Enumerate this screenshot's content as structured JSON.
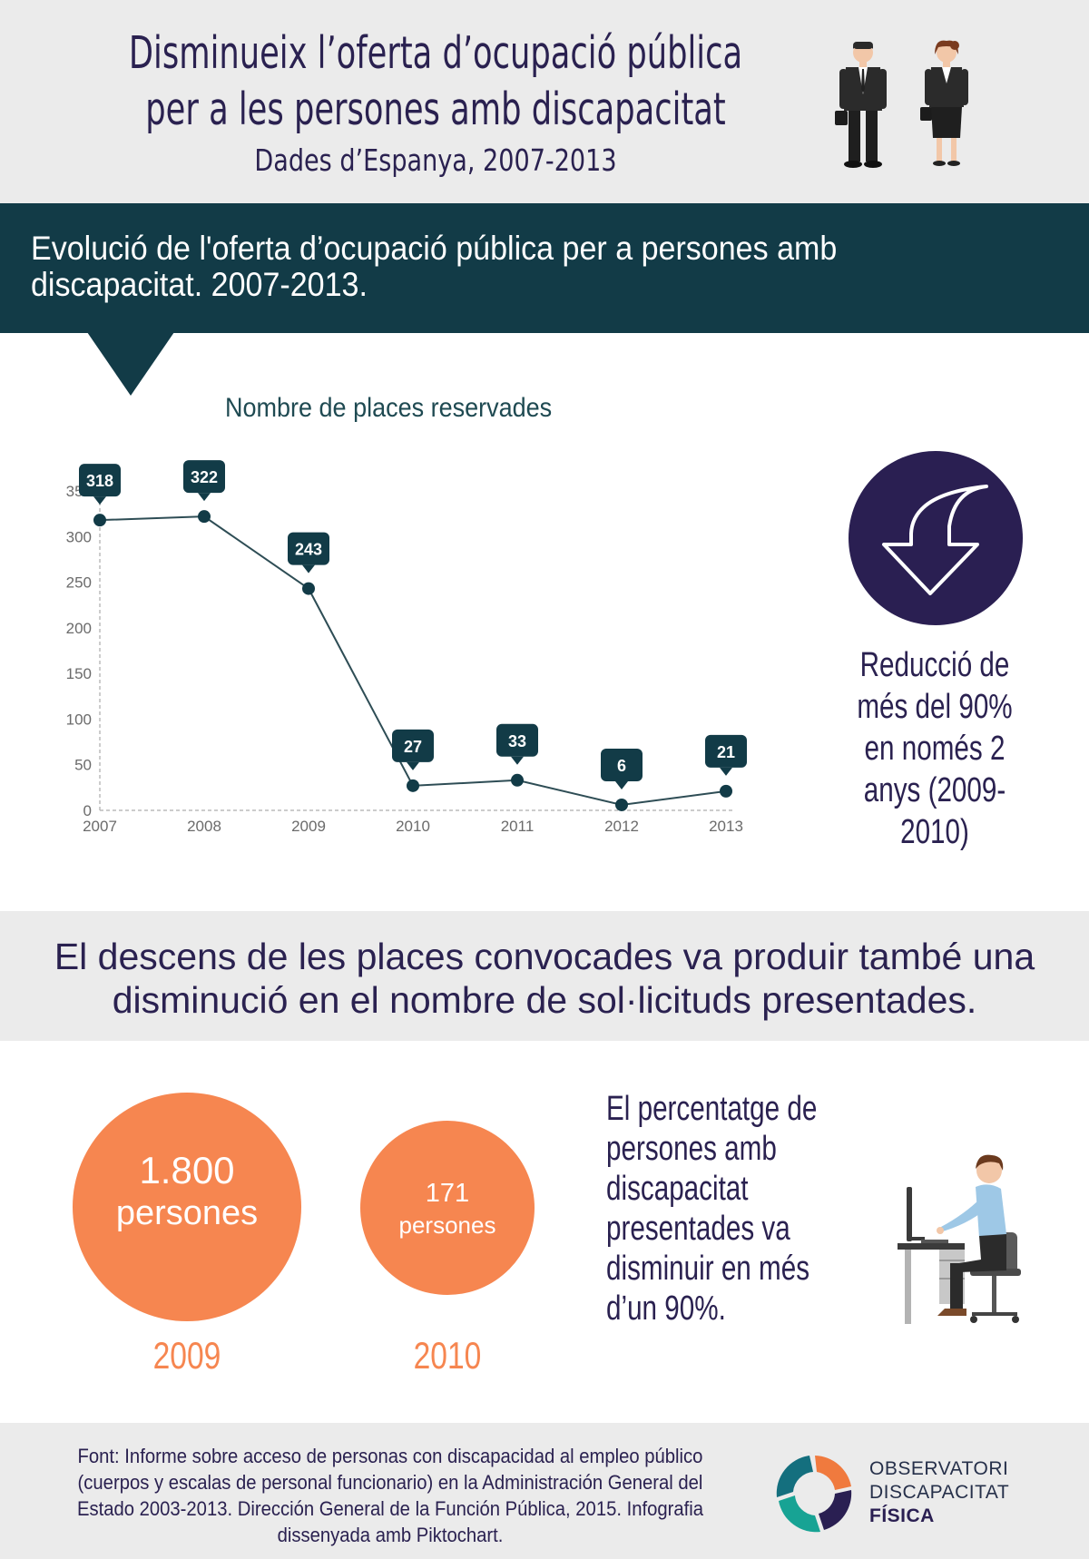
{
  "header": {
    "title": "Disminueix l’oferta d’ocupació pública per a les persones amb discapacitat",
    "subtitle": "Dades d’Espanya, 2007-2013"
  },
  "band": {
    "text": "Evolució de l'oferta d’ocupació pública per a persones amb discapacitat. 2007-2013."
  },
  "chart_data": {
    "type": "line",
    "title": "Nombre de places reservades",
    "categories": [
      "2007",
      "2008",
      "2009",
      "2010",
      "2011",
      "2012",
      "2013"
    ],
    "series": [
      {
        "values": [
          318,
          322,
          243,
          27,
          33,
          6,
          21
        ]
      }
    ],
    "yticks": [
      0,
      50,
      100,
      150,
      200,
      250,
      300,
      350
    ],
    "ylim": [
      0,
      350
    ],
    "grid": false,
    "line_color": "#2e4d55",
    "label_color": "#123b47"
  },
  "reduction": {
    "text": "Reducció de més del 90% en només 2 anys (2009-2010)",
    "icon": "down-arrow-icon"
  },
  "statement": {
    "text": "El descens de les places convocades va produir també una disminució en el nombre de sol·licituds presentades."
  },
  "bubbles": [
    {
      "number": "1.800",
      "label": "persones",
      "year": "2009"
    },
    {
      "number": "171",
      "label": "persones",
      "year": "2010"
    }
  ],
  "percentage_text": "El percentatge de persones amb discapacitat presentades va disminuir en més d’un 90%.",
  "footer": {
    "source": "Font: Informe sobre acceso de personas con discapacidad al empleo público (cuerpos y escalas de personal funcionario) en la Administración General del Estado 2003-2013. Dirección General de la Función Pública, 2015. Infografia dissenyada amb Piktochart.",
    "logo_line1": "OBSERVATORI",
    "logo_line2": "DISCAPACITAT",
    "logo_line3": "FÍSICA"
  },
  "colors": {
    "navy": "#2a2150",
    "teal": "#123b47",
    "orange": "#f68650",
    "grey": "#ebebeb"
  }
}
